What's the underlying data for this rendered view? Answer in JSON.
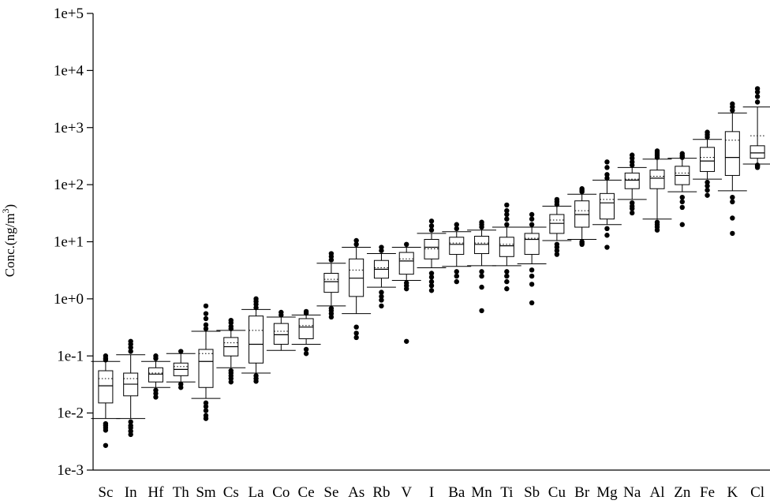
{
  "chart_data": {
    "type": "boxplot",
    "ylabel": {
      "prefix": "Conc.(ng/m",
      "superscript": "3",
      "suffix": ")"
    },
    "yscale": "log",
    "ylim": [
      0.001,
      100000
    ],
    "ytick_values": [
      0.001,
      0.01,
      0.1,
      1,
      10,
      100,
      1000,
      10000,
      100000
    ],
    "ytick_labels": [
      "1e-3",
      "1e-2",
      "1e-1",
      "1e+0",
      "1e+1",
      "1e+2",
      "1e+3",
      "1e+4",
      "1e+5"
    ],
    "grid": false,
    "legend": "none",
    "categories": [
      "Sc",
      "In",
      "Hf",
      "Th",
      "Sm",
      "Cs",
      "La",
      "Co",
      "Ce",
      "Se",
      "As",
      "Rb",
      "V",
      "I",
      "Ba",
      "Mn",
      "Ti",
      "Sb",
      "Cu",
      "Br",
      "Mg",
      "Na",
      "Al",
      "Zn",
      "Fe",
      "K",
      "Cl"
    ],
    "boxes": [
      {
        "name": "Sc",
        "whisker_low": 0.008,
        "q1": 0.015,
        "median": 0.03,
        "mean": 0.04,
        "q3": 0.055,
        "whisker_high": 0.08,
        "outliers": [
          0.0027,
          0.005,
          0.0055,
          0.006,
          0.0065,
          0.085,
          0.09,
          0.1
        ]
      },
      {
        "name": "In",
        "whisker_low": 0.008,
        "q1": 0.02,
        "median": 0.032,
        "mean": 0.04,
        "q3": 0.05,
        "whisker_high": 0.105,
        "outliers": [
          0.0042,
          0.0048,
          0.0055,
          0.006,
          0.007,
          0.12,
          0.14,
          0.16,
          0.18
        ]
      },
      {
        "name": "Hf",
        "whisker_low": 0.028,
        "q1": 0.035,
        "median": 0.048,
        "mean": 0.05,
        "q3": 0.062,
        "whisker_high": 0.08,
        "outliers": [
          0.019,
          0.022,
          0.025,
          0.09,
          0.1
        ]
      },
      {
        "name": "Th",
        "whisker_low": 0.035,
        "q1": 0.045,
        "median": 0.058,
        "mean": 0.065,
        "q3": 0.075,
        "whisker_high": 0.11,
        "outliers": [
          0.028,
          0.032,
          0.12
        ]
      },
      {
        "name": "Sm",
        "whisker_low": 0.018,
        "q1": 0.028,
        "median": 0.08,
        "mean": 0.11,
        "q3": 0.13,
        "whisker_high": 0.27,
        "outliers": [
          0.008,
          0.009,
          0.011,
          0.013,
          0.015,
          0.3,
          0.35,
          0.45,
          0.55,
          0.75
        ]
      },
      {
        "name": "Cs",
        "whisker_low": 0.062,
        "q1": 0.1,
        "median": 0.145,
        "mean": 0.17,
        "q3": 0.21,
        "whisker_high": 0.28,
        "outliers": [
          0.035,
          0.04,
          0.045,
          0.05,
          0.055,
          0.3,
          0.33,
          0.38,
          0.42
        ]
      },
      {
        "name": "La",
        "whisker_low": 0.05,
        "q1": 0.075,
        "median": 0.16,
        "mean": 0.28,
        "q3": 0.5,
        "whisker_high": 0.65,
        "outliers": [
          0.036,
          0.04,
          0.045,
          0.7,
          0.8,
          0.9,
          1.0
        ]
      },
      {
        "name": "Co",
        "whisker_low": 0.125,
        "q1": 0.16,
        "median": 0.235,
        "mean": 0.27,
        "q3": 0.37,
        "whisker_high": 0.48,
        "outliers": [
          0.52,
          0.58
        ]
      },
      {
        "name": "Ce",
        "whisker_low": 0.16,
        "q1": 0.2,
        "median": 0.32,
        "mean": 0.34,
        "q3": 0.45,
        "whisker_high": 0.52,
        "outliers": [
          0.11,
          0.13,
          0.56,
          0.6
        ]
      },
      {
        "name": "Se",
        "whisker_low": 0.75,
        "q1": 1.3,
        "median": 2.0,
        "mean": 2.2,
        "q3": 2.8,
        "whisker_high": 4.2,
        "outliers": [
          0.48,
          0.55,
          0.62,
          0.68,
          4.8,
          5.5,
          6.2
        ]
      },
      {
        "name": "As",
        "whisker_low": 0.55,
        "q1": 1.1,
        "median": 2.3,
        "mean": 3.2,
        "q3": 5.0,
        "whisker_high": 8.0,
        "outliers": [
          0.21,
          0.25,
          0.32,
          9.0,
          10.5
        ]
      },
      {
        "name": "Rb",
        "whisker_low": 1.6,
        "q1": 2.3,
        "median": 3.3,
        "mean": 3.5,
        "q3": 4.7,
        "whisker_high": 6.2,
        "outliers": [
          0.75,
          0.95,
          1.1,
          1.3,
          7.0,
          8.0
        ]
      },
      {
        "name": "V",
        "whisker_low": 2.1,
        "q1": 2.7,
        "median": 4.6,
        "mean": 5.0,
        "q3": 6.5,
        "whisker_high": 8.0,
        "outliers": [
          0.18,
          1.5,
          1.7,
          1.9,
          9.0
        ]
      },
      {
        "name": "I",
        "whisker_low": 3.5,
        "q1": 5.0,
        "median": 8.0,
        "mean": 7.5,
        "q3": 11.0,
        "whisker_high": 14.0,
        "outliers": [
          1.4,
          1.7,
          2.0,
          2.4,
          2.8,
          16,
          19,
          23
        ]
      },
      {
        "name": "Ba",
        "whisker_low": 3.7,
        "q1": 6.0,
        "median": 9.0,
        "mean": 9.5,
        "q3": 12.0,
        "whisker_high": 15.0,
        "outliers": [
          2.0,
          2.5,
          3.0,
          17,
          20
        ]
      },
      {
        "name": "Mn",
        "whisker_low": 3.8,
        "q1": 6.2,
        "median": 9.0,
        "mean": 9.5,
        "q3": 12.5,
        "whisker_high": 16.0,
        "outliers": [
          0.62,
          1.6,
          2.5,
          3.0,
          18,
          20,
          22
        ]
      },
      {
        "name": "Ti",
        "whisker_low": 3.8,
        "q1": 5.5,
        "median": 8.5,
        "mean": 9.0,
        "q3": 12.0,
        "whisker_high": 18.0,
        "outliers": [
          1.5,
          2.0,
          2.5,
          3.0,
          20,
          25,
          30,
          35,
          44
        ]
      },
      {
        "name": "Sb",
        "whisker_low": 4.1,
        "q1": 6.0,
        "median": 11.0,
        "mean": 11.5,
        "q3": 14.0,
        "whisker_high": 18.0,
        "outliers": [
          0.85,
          1.8,
          2.5,
          3.2,
          20,
          25,
          30
        ]
      },
      {
        "name": "Cu",
        "whisker_low": 10.5,
        "q1": 14.0,
        "median": 21.0,
        "mean": 24.0,
        "q3": 30.0,
        "whisker_high": 42.0,
        "outliers": [
          6.0,
          7.0,
          8.0,
          9.0,
          45,
          50,
          55
        ]
      },
      {
        "name": "Br",
        "whisker_low": 11.0,
        "q1": 18.0,
        "median": 30.0,
        "mean": 35.0,
        "q3": 52.0,
        "whisker_high": 68.0,
        "outliers": [
          9.0,
          9.5,
          10.0,
          75,
          80,
          85
        ]
      },
      {
        "name": "Mg",
        "whisker_low": 20.0,
        "q1": 25.0,
        "median": 48.0,
        "mean": 55.0,
        "q3": 70.0,
        "whisker_high": 120.0,
        "outliers": [
          8.0,
          13.0,
          17.0,
          130,
          150,
          200,
          250
        ]
      },
      {
        "name": "Na",
        "whisker_low": 55.0,
        "q1": 85.0,
        "median": 120.0,
        "mean": 125.0,
        "q3": 160.0,
        "whisker_high": 200.0,
        "outliers": [
          32,
          38,
          42,
          48,
          220,
          250,
          290,
          330
        ]
      },
      {
        "name": "Al",
        "whisker_low": 25.0,
        "q1": 85.0,
        "median": 130.0,
        "mean": 140.0,
        "q3": 180.0,
        "whisker_high": 280.0,
        "outliers": [
          16,
          18,
          20,
          22,
          300,
          330,
          360,
          390
        ]
      },
      {
        "name": "Zn",
        "whisker_low": 75.0,
        "q1": 100.0,
        "median": 145.0,
        "mean": 160.0,
        "q3": 210.0,
        "whisker_high": 290.0,
        "outliers": [
          20,
          40,
          50,
          60,
          300,
          320,
          350
        ]
      },
      {
        "name": "Fe",
        "whisker_low": 125.0,
        "q1": 170.0,
        "median": 260.0,
        "mean": 300.0,
        "q3": 450.0,
        "whisker_high": 620.0,
        "outliers": [
          65,
          80,
          95,
          110,
          680,
          750,
          830
        ]
      },
      {
        "name": "K",
        "whisker_low": 78.0,
        "q1": 145.0,
        "median": 300.0,
        "mean": 600.0,
        "q3": 850.0,
        "whisker_high": 1800.0,
        "outliers": [
          14,
          26,
          50,
          60,
          2000,
          2300,
          2600
        ]
      },
      {
        "name": "Cl",
        "whisker_low": 230.0,
        "q1": 290.0,
        "median": 360.0,
        "mean": 720.0,
        "q3": 480.0,
        "whisker_high": 2300.0,
        "outliers": [
          200,
          210,
          215,
          220,
          2800,
          3500,
          4200,
          4800
        ]
      }
    ]
  }
}
